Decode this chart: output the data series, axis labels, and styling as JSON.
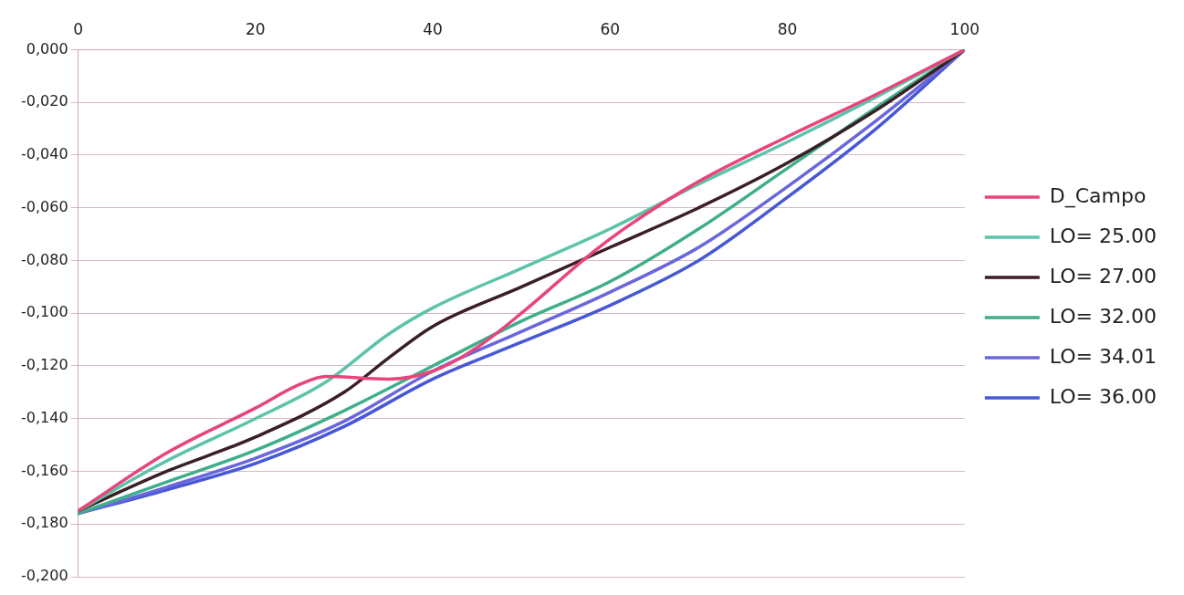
{
  "chart_data": {
    "type": "line",
    "x": [
      0,
      10,
      20,
      25,
      28,
      35,
      40,
      45,
      50,
      58,
      62,
      70,
      80,
      90,
      100
    ],
    "series": [
      {
        "name": "D_Campo",
        "color": "#e8457a",
        "values": [
          -0.175,
          -0.153,
          -0.136,
          -0.127,
          -0.124,
          -0.125,
          -0.122,
          -0.113,
          -0.1,
          -0.077,
          -0.067,
          -0.05,
          -0.033,
          -0.017,
          0
        ]
      },
      {
        "name": "LO= 25.00",
        "color": "#5cc3aa",
        "x": [
          0,
          10,
          20,
          28,
          35,
          40,
          50,
          60,
          70,
          80,
          90,
          100
        ],
        "values": [
          -0.175,
          -0.156,
          -0.14,
          -0.126,
          -0.108,
          -0.098,
          -0.083,
          -0.068,
          -0.051,
          -0.035,
          -0.018,
          0
        ]
      },
      {
        "name": "LO= 27.00",
        "color": "#3a1f24",
        "x": [
          0,
          10,
          20,
          30,
          35,
          40,
          50,
          60,
          70,
          80,
          90,
          100
        ],
        "values": [
          -0.175,
          -0.16,
          -0.147,
          -0.13,
          -0.117,
          -0.105,
          -0.09,
          -0.075,
          -0.06,
          -0.043,
          -0.023,
          0
        ]
      },
      {
        "name": "LO= 32.00",
        "color": "#3fae8a",
        "x": [
          0,
          10,
          20,
          30,
          40,
          50,
          60,
          70,
          80,
          90,
          100
        ],
        "values": [
          -0.176,
          -0.164,
          -0.152,
          -0.137,
          -0.12,
          -0.103,
          -0.088,
          -0.068,
          -0.045,
          -0.022,
          0
        ]
      },
      {
        "name": "LO= 34.01",
        "color": "#6a66dc",
        "x": [
          0,
          10,
          20,
          30,
          40,
          50,
          60,
          70,
          80,
          90,
          100
        ],
        "values": [
          -0.176,
          -0.166,
          -0.155,
          -0.141,
          -0.122,
          -0.107,
          -0.092,
          -0.075,
          -0.052,
          -0.027,
          0
        ]
      },
      {
        "name": "LO= 36.00",
        "color": "#4658d6",
        "x": [
          0,
          10,
          20,
          30,
          40,
          50,
          60,
          70,
          80,
          90,
          100
        ],
        "values": [
          -0.176,
          -0.167,
          -0.157,
          -0.143,
          -0.125,
          -0.111,
          -0.097,
          -0.08,
          -0.056,
          -0.03,
          0
        ]
      }
    ],
    "xlim": [
      0,
      100
    ],
    "xticks": [
      0,
      20,
      40,
      60,
      80,
      100
    ],
    "ylim": [
      -0.2,
      0
    ],
    "yticks": [
      {
        "value": 0,
        "label": "0,000"
      },
      {
        "value": -0.02,
        "label": "-0,020"
      },
      {
        "value": -0.04,
        "label": "-0,040"
      },
      {
        "value": -0.06,
        "label": "-0,060"
      },
      {
        "value": -0.08,
        "label": "-0,080"
      },
      {
        "value": -0.1,
        "label": "-0,100"
      },
      {
        "value": -0.12,
        "label": "-0,120"
      },
      {
        "value": -0.14,
        "label": "-0,140"
      },
      {
        "value": -0.16,
        "label": "-0,160"
      },
      {
        "value": -0.18,
        "label": "-0,180"
      },
      {
        "value": -0.2,
        "label": "-0,200"
      }
    ],
    "grid": "y",
    "legend": "right",
    "marker": "none",
    "line_style": "solid"
  }
}
